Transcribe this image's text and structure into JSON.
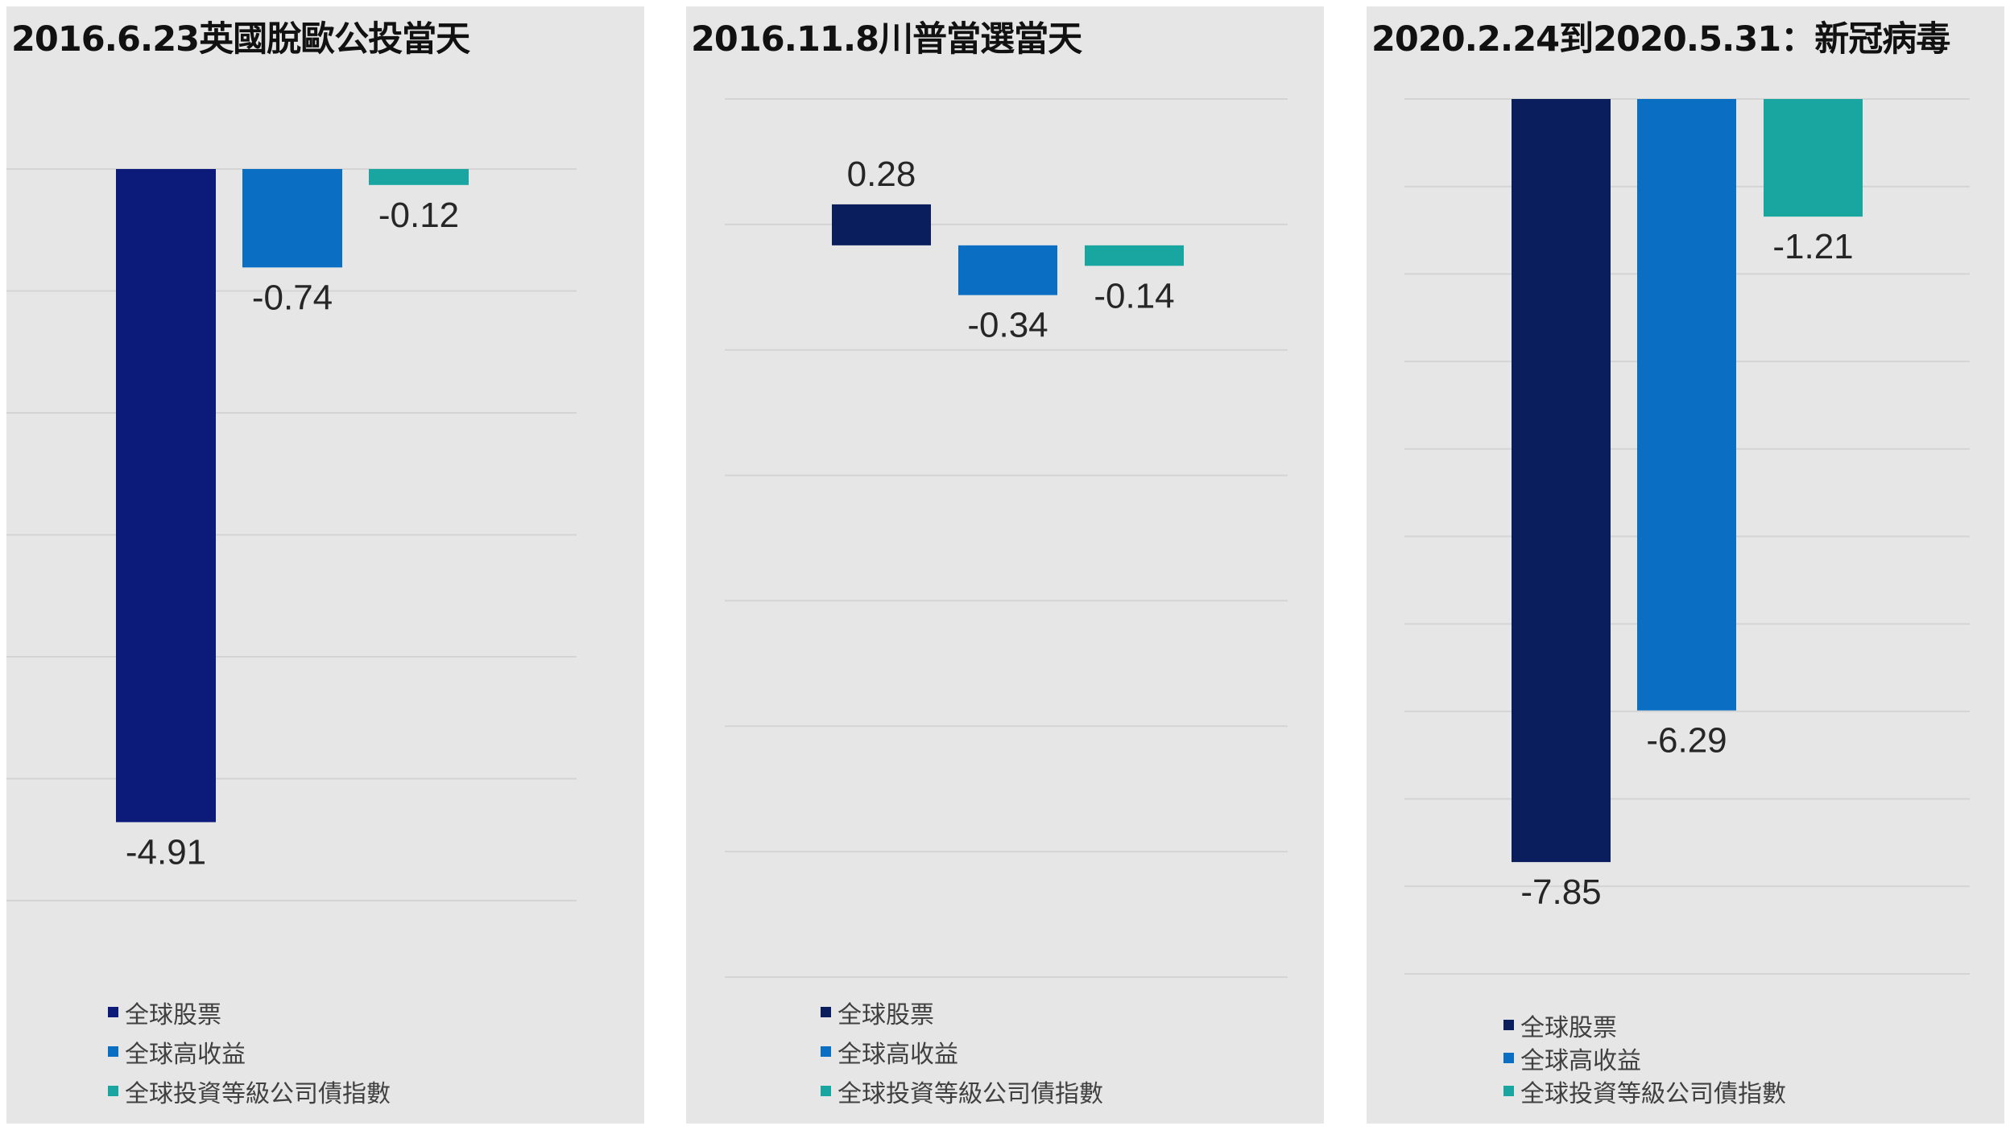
{
  "legend_labels": [
    "全球股票",
    "全球高收益",
    "全球投資等級公司債指數"
  ],
  "colors": {
    "panel_bg": "#e6e6e6",
    "gridline": "#d4d4d4",
    "panel1_series": [
      "#0c1a7a",
      "#0a6fc2",
      "#1aa6a0"
    ],
    "panel2_series": [
      "#0a1e5e",
      "#0a6fc2",
      "#1aa6a0"
    ],
    "panel3_series": [
      "#0a1e5e",
      "#0a6fc2",
      "#1aa6a0"
    ]
  },
  "chart_data": [
    {
      "type": "bar",
      "title": "2016.6.23英國脫歐公投當天",
      "categories": [
        "全球股票",
        "全球高收益",
        "全球投資等級公司債指數"
      ],
      "values": [
        -4.91,
        -0.74,
        -0.12
      ],
      "data_labels": [
        "-4.91",
        "-0.74",
        "-0.12"
      ],
      "ylim": [
        -5.5,
        0
      ],
      "grid": true,
      "legend": "bottom-left"
    },
    {
      "type": "bar",
      "title": "2016.11.8川普當選當天",
      "categories": [
        "全球股票",
        "全球高收益",
        "全球投資等級公司債指數"
      ],
      "values": [
        0.28,
        -0.34,
        -0.14
      ],
      "data_labels": [
        "0.28",
        "-0.34",
        "-0.14"
      ],
      "ylim": [
        -5.0,
        1.0
      ],
      "grid": true,
      "legend": "bottom-left"
    },
    {
      "type": "bar",
      "title": "2020.2.24到2020.5.31：新冠病毒",
      "categories": [
        "全球股票",
        "全球高收益",
        "全球投資等級公司債指數"
      ],
      "values": [
        -7.85,
        -6.29,
        -1.21
      ],
      "data_labels": [
        "-7.85",
        "-6.29",
        "-1.21"
      ],
      "ylim": [
        -9,
        0
      ],
      "grid": true,
      "legend": "bottom-left"
    }
  ]
}
